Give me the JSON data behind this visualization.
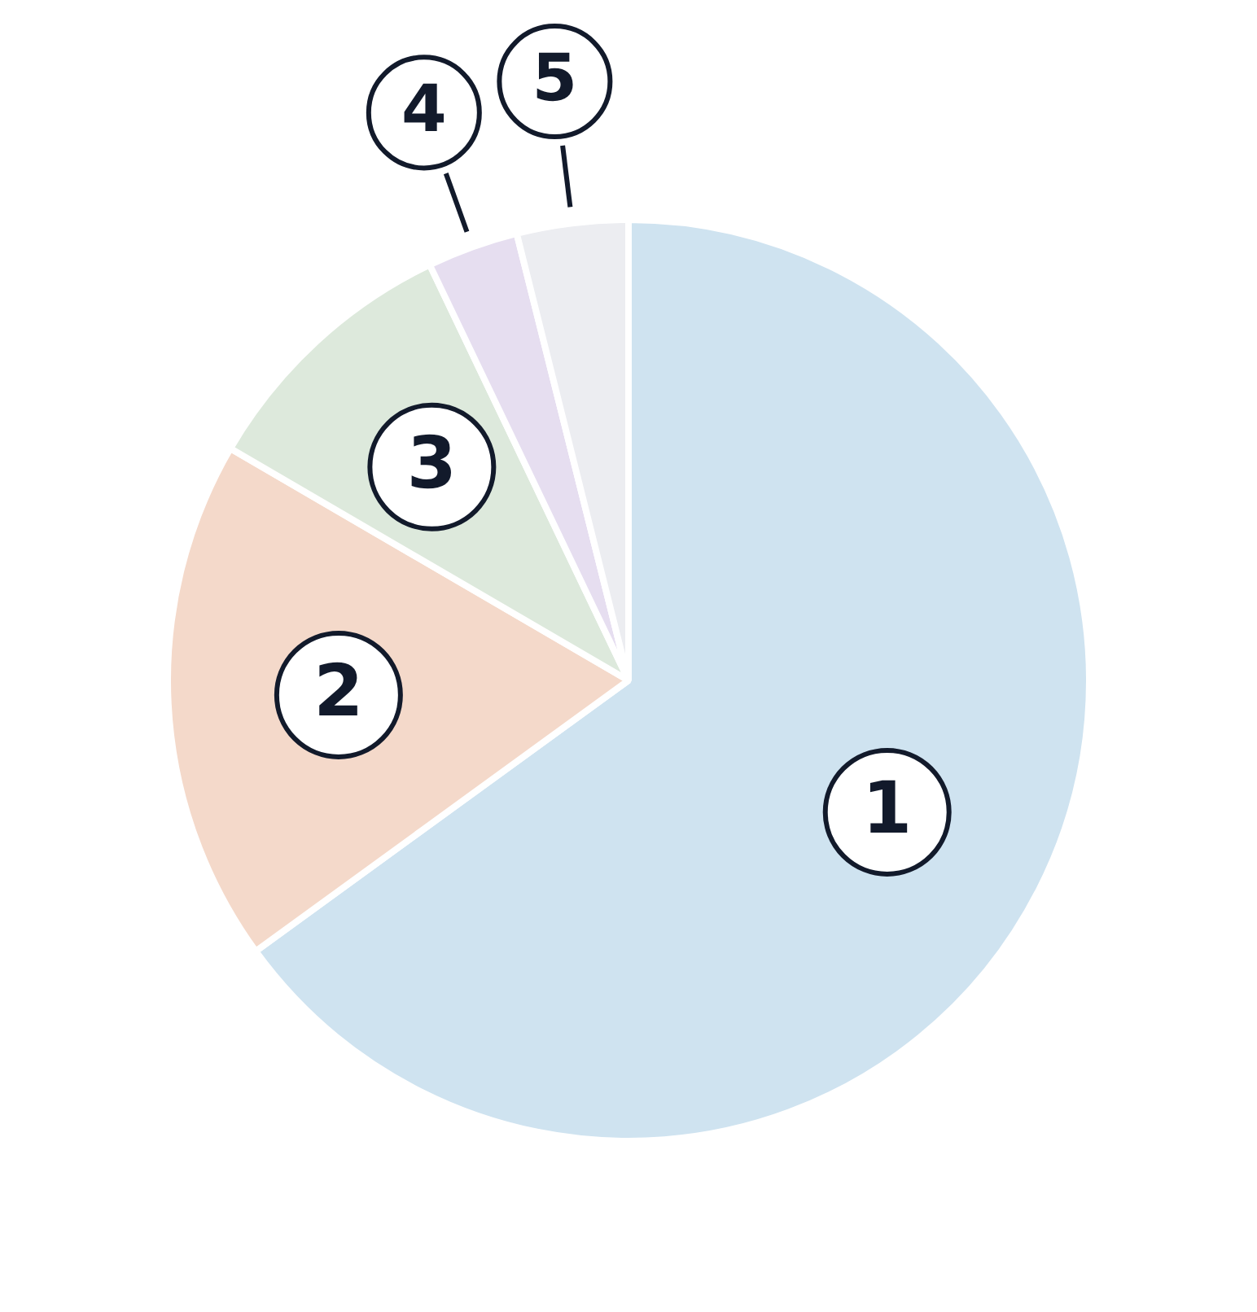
{
  "chart_data": {
    "type": "pie",
    "categories": [
      "1",
      "2",
      "3",
      "4",
      "5"
    ],
    "values": [
      65,
      18.4,
      9.5,
      3.2,
      3.9
    ],
    "colors": [
      "#cfe3f0",
      "#f4d9ca",
      "#dde9dc",
      "#e6def0",
      "#ecedf1"
    ],
    "legend": false
  }
}
